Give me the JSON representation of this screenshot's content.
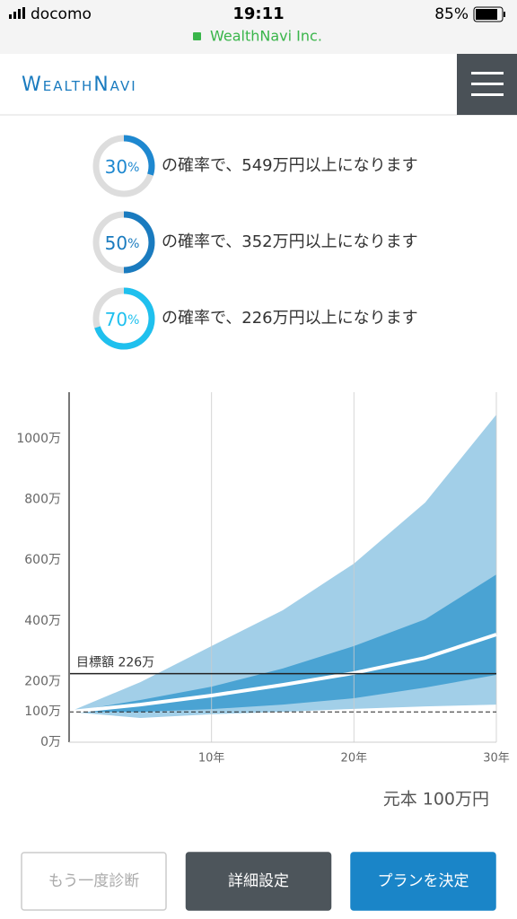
{
  "status_bar": {
    "carrier": "docomo",
    "time": "19:11",
    "url": "WealthNavi Inc.",
    "battery": "85%"
  },
  "header": {
    "logo": "WealthNavi"
  },
  "probabilities": [
    {
      "value": 30,
      "unit": "%",
      "text": "の確率で、549万円以上になります",
      "color": "#1e88d0"
    },
    {
      "value": 50,
      "unit": "%",
      "text": "の確率で、352万円以上になります",
      "color": "#1a7bbf"
    },
    {
      "value": 70,
      "unit": "%",
      "text": "の確率で、226万円以上になります",
      "color": "#1fc0ee"
    }
  ],
  "chart_data": {
    "type": "area",
    "x": [
      0,
      5,
      10,
      15,
      20,
      25,
      30
    ],
    "xlim": [
      0,
      30
    ],
    "xticks": [
      {
        "value": 10,
        "label": "10年"
      },
      {
        "value": 20,
        "label": "20年"
      },
      {
        "value": 30,
        "label": "30年"
      }
    ],
    "ylim": [
      0,
      1154
    ],
    "yticks": [
      {
        "value": 0,
        "label": "0万"
      },
      {
        "value": 100,
        "label": "100万"
      },
      {
        "value": 200,
        "label": "200万"
      },
      {
        "value": 400,
        "label": "400万"
      },
      {
        "value": 600,
        "label": "600万"
      },
      {
        "value": 800,
        "label": "800万"
      },
      {
        "value": 1000,
        "label": "1000万"
      }
    ],
    "grid": true,
    "bands": [
      {
        "color": "#a2cfe8",
        "upper": [
          100,
          198,
          317,
          435,
          589,
          790,
          1080
        ],
        "lower": [
          100,
          80,
          92,
          100,
          110,
          118,
          124
        ]
      },
      {
        "color": "#4aa3d3",
        "upper": [
          100,
          139,
          183,
          243,
          317,
          405,
          553
        ],
        "lower": [
          100,
          100,
          109,
          124,
          145,
          180,
          222
        ]
      }
    ],
    "median": {
      "color": "#ffffff",
      "values": [
        100,
        124,
        154,
        189,
        228,
        278,
        355
      ]
    },
    "target": {
      "value": 226,
      "label": "目標額 226万"
    },
    "principal_line": 100,
    "principal_label": "元本 100万円"
  },
  "buttons": [
    "もう一度診断",
    "詳細設定",
    "プランを決定"
  ]
}
